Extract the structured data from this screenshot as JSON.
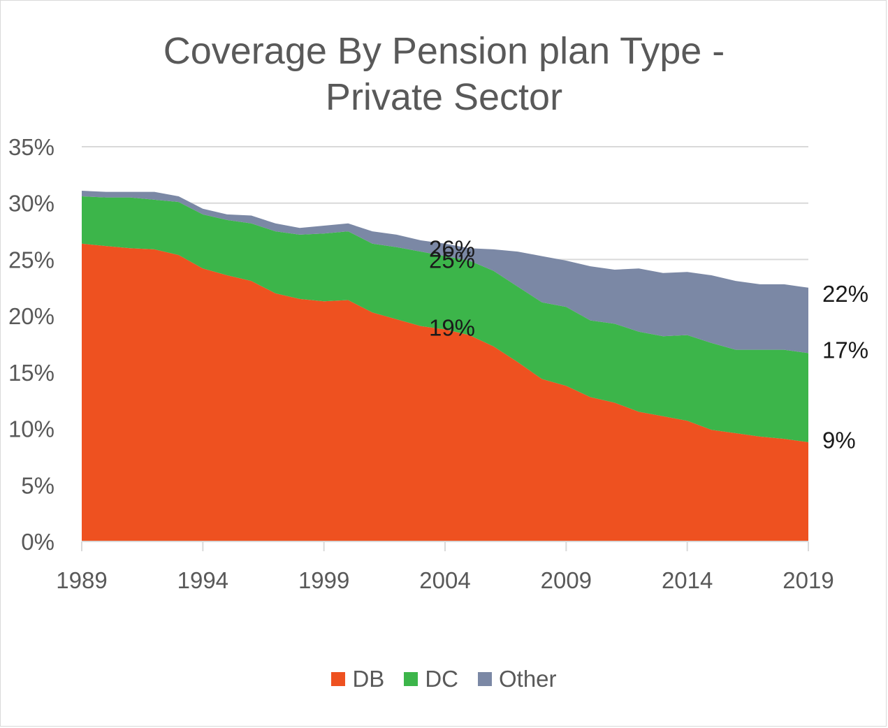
{
  "chart_data": {
    "type": "area",
    "stacked": true,
    "title": [
      "Coverage By Pension plan Type -",
      "Private Sector"
    ],
    "xlabel": "",
    "ylabel": "",
    "x": [
      1989,
      1990,
      1991,
      1992,
      1993,
      1994,
      1995,
      1996,
      1997,
      1998,
      1999,
      2000,
      2001,
      2002,
      2003,
      2004,
      2005,
      2006,
      2007,
      2008,
      2009,
      2010,
      2011,
      2012,
      2013,
      2014,
      2015,
      2016,
      2017,
      2018,
      2019
    ],
    "x_ticks": [
      "1989",
      "1994",
      "1999",
      "2004",
      "2009",
      "2014",
      "2019"
    ],
    "x_range": [
      1989,
      2019
    ],
    "y_ticks": [
      "0%",
      "5%",
      "10%",
      "15%",
      "20%",
      "25%",
      "30%",
      "35%"
    ],
    "ylim": [
      0,
      35
    ],
    "y_unit": "%",
    "grid": "horizontal",
    "legend_position": "bottom",
    "series": [
      {
        "name": "DB",
        "color": "#ee5120",
        "values": [
          26.4,
          26.2,
          26.0,
          25.9,
          25.4,
          24.2,
          23.6,
          23.1,
          22.0,
          21.5,
          21.3,
          21.4,
          20.3,
          19.7,
          19.1,
          18.8,
          18.3,
          17.3,
          15.9,
          14.4,
          13.8,
          12.8,
          12.3,
          11.5,
          11.1,
          10.7,
          9.9,
          9.6,
          9.3,
          9.1,
          8.8
        ]
      },
      {
        "name": "DC",
        "color": "#3cb54a",
        "values": [
          4.2,
          4.3,
          4.5,
          4.4,
          4.7,
          4.8,
          4.9,
          5.1,
          5.5,
          5.7,
          6.0,
          6.1,
          6.1,
          6.4,
          6.6,
          6.5,
          6.6,
          6.7,
          6.7,
          6.8,
          7.0,
          6.8,
          7.0,
          7.1,
          7.1,
          7.6,
          7.7,
          7.4,
          7.7,
          7.9,
          7.9
        ]
      },
      {
        "name": "Other",
        "color": "#7b88a5",
        "values": [
          0.5,
          0.5,
          0.5,
          0.7,
          0.5,
          0.5,
          0.5,
          0.7,
          0.7,
          0.6,
          0.7,
          0.7,
          1.1,
          1.1,
          1.0,
          1.1,
          1.1,
          1.9,
          3.1,
          4.1,
          4.1,
          4.8,
          4.8,
          5.6,
          5.6,
          5.6,
          6.0,
          6.1,
          5.8,
          5.8,
          5.8
        ]
      }
    ],
    "annotations": [
      {
        "text": "26%",
        "x": 2004,
        "y": 26
      },
      {
        "text": "25%",
        "x": 2004,
        "y": 25
      },
      {
        "text": "19%",
        "x": 2004,
        "y": 19
      },
      {
        "text": "22%",
        "x": 2019,
        "y": 22
      },
      {
        "text": "17%",
        "x": 2019,
        "y": 17
      },
      {
        "text": "9%",
        "x": 2019,
        "y": 9
      }
    ]
  }
}
